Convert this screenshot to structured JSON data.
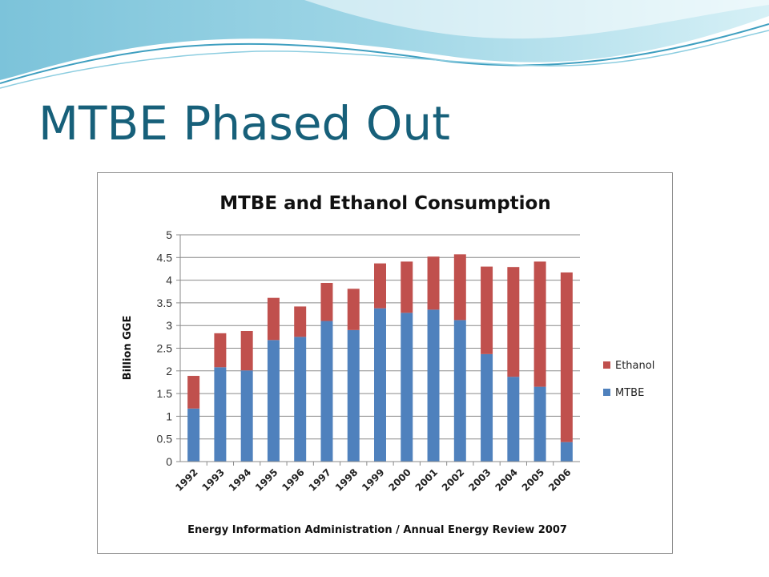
{
  "slide": {
    "title": "MTBE Phased Out",
    "colors": {
      "title": "#17607a",
      "wave_dark": "#5fb3cf",
      "wave_light": "#bfe6f2"
    }
  },
  "chart_data": {
    "type": "bar",
    "stacked": true,
    "title": "MTBE and Ethanol Consumption",
    "xlabel": "Energy Information Administration / Annual Energy Review 2007",
    "ylabel": "Billion GGE",
    "ylim": [
      0,
      5
    ],
    "yticks": [
      "0",
      "0.5",
      "1",
      "1.5",
      "2",
      "2.5",
      "3",
      "3.5",
      "4",
      "4.5",
      "5"
    ],
    "grid": true,
    "legend_position": "right",
    "categories": [
      "1992",
      "1993",
      "1994",
      "1995",
      "1996",
      "1997",
      "1998",
      "1999",
      "2000",
      "2001",
      "2002",
      "2003",
      "2004",
      "2005",
      "2006"
    ],
    "series": [
      {
        "name": "MTBE",
        "color": "#4f81bd",
        "values": [
          1.17,
          2.08,
          2.01,
          2.68,
          2.75,
          3.1,
          2.9,
          3.38,
          3.28,
          3.35,
          3.12,
          2.37,
          1.87,
          1.65,
          0.43
        ]
      },
      {
        "name": "Ethanol",
        "color": "#c0504d",
        "values": [
          0.72,
          0.75,
          0.87,
          0.93,
          0.67,
          0.84,
          0.91,
          0.99,
          1.13,
          1.17,
          1.45,
          1.93,
          2.42,
          2.76,
          3.74
        ]
      }
    ]
  }
}
